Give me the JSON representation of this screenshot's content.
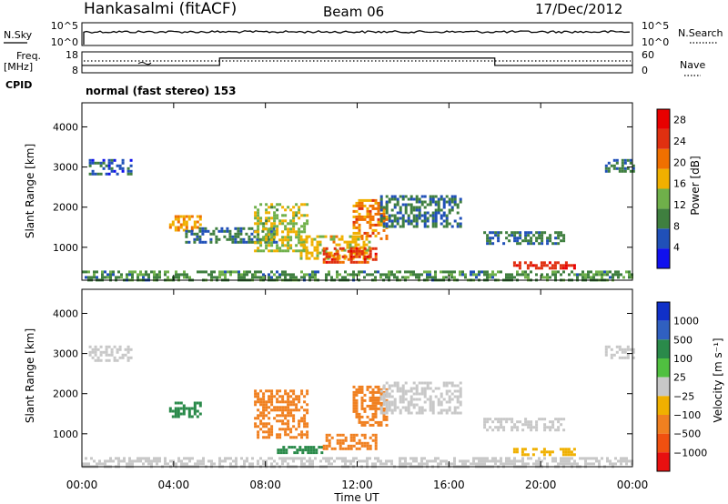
{
  "header": {
    "station": "Hankasalmi (fitACF)",
    "beam": "Beam 06",
    "date": "17/Dec/2012"
  },
  "panels": {
    "nsky": {
      "left_label": "N.Sky",
      "right_label": "N.Search",
      "left_ticks": [
        "10^5",
        "10^0"
      ],
      "right_ticks": [
        "10^5",
        "10^0"
      ]
    },
    "freq": {
      "left_label_line1": "Freq.",
      "left_label_line2": "[MHz]",
      "right_label": "Nave",
      "left_ticks": [
        "18",
        "8"
      ],
      "right_ticks": [
        "60",
        "0"
      ],
      "steps": [
        {
          "from": "00:00",
          "to": "06:00",
          "level": 0.35
        },
        {
          "from": "06:00",
          "to": "18:00",
          "level": 0.7
        },
        {
          "from": "18:00",
          "to": "24:00",
          "level": 0.35
        }
      ]
    },
    "cpid": {
      "label": "CPID",
      "text": "normal (fast stereo) 153"
    }
  },
  "chart_data": [
    {
      "type": "heatmap",
      "name": "power",
      "ylabel": "Slant Range [km]",
      "xlabel": "",
      "x_ticks": [
        "00:00",
        "04:00",
        "08:00",
        "12:00",
        "16:00",
        "20:00",
        "00:00"
      ],
      "xlim_hours": [
        0,
        24
      ],
      "y_ticks": [
        1000,
        2000,
        3000,
        4000
      ],
      "ylim": [
        180,
        4600
      ],
      "colorbar": {
        "label": "Power [dB]",
        "ticks": [
          4,
          8,
          12,
          16,
          20,
          24,
          28
        ],
        "range": [
          0,
          30
        ],
        "colors": [
          "#1010ee",
          "#2050b8",
          "#3f7f3f",
          "#6fb04a",
          "#f0b000",
          "#f07000",
          "#e03010",
          "#e80000"
        ]
      },
      "echo_regions": [
        {
          "t": [
            0.3,
            2.2
          ],
          "r": [
            2800,
            3200
          ],
          "value": 6
        },
        {
          "t": [
            0.0,
            24.0
          ],
          "r": [
            200,
            420
          ],
          "value": 10
        },
        {
          "t": [
            3.8,
            5.2
          ],
          "r": [
            1450,
            1800
          ],
          "value": 18
        },
        {
          "t": [
            4.5,
            8.5
          ],
          "r": [
            1100,
            1500
          ],
          "value": 8
        },
        {
          "t": [
            7.5,
            9.8
          ],
          "r": [
            900,
            2100
          ],
          "value": 14
        },
        {
          "t": [
            9.5,
            12.5
          ],
          "r": [
            700,
            1300
          ],
          "value": 16
        },
        {
          "t": [
            10.5,
            12.8
          ],
          "r": [
            650,
            1000
          ],
          "value": 24
        },
        {
          "t": [
            11.8,
            13.3
          ],
          "r": [
            1200,
            2200
          ],
          "value": 20
        },
        {
          "t": [
            13.0,
            16.5
          ],
          "r": [
            1500,
            2300
          ],
          "value": 8
        },
        {
          "t": [
            17.5,
            21.0
          ],
          "r": [
            1100,
            1400
          ],
          "value": 8
        },
        {
          "t": [
            18.8,
            21.5
          ],
          "r": [
            450,
            650
          ],
          "value": 26
        },
        {
          "t": [
            22.8,
            24.0
          ],
          "r": [
            2900,
            3200
          ],
          "value": 8
        }
      ]
    },
    {
      "type": "heatmap",
      "name": "velocity",
      "ylabel": "Slant Range [km]",
      "xlabel": "Time UT",
      "x_ticks": [
        "00:00",
        "04:00",
        "08:00",
        "12:00",
        "16:00",
        "20:00",
        "00:00"
      ],
      "xlim_hours": [
        0,
        24
      ],
      "y_ticks": [
        1000,
        2000,
        3000,
        4000
      ],
      "ylim": [
        180,
        4600
      ],
      "colorbar": {
        "label": "Velocity [m s⁻¹]",
        "ticks": [
          "1000",
          "500",
          "100",
          "25",
          "−25",
          "−100",
          "−500",
          "−1000"
        ],
        "colors": [
          "#1030c8",
          "#3060c0",
          "#2a8a4a",
          "#50c040",
          "#c8c8c8",
          "#f0b000",
          "#f08020",
          "#f05010",
          "#e81010"
        ]
      },
      "echo_regions": [
        {
          "t": [
            0.3,
            2.2
          ],
          "r": [
            2800,
            3200
          ],
          "value": 0
        },
        {
          "t": [
            0.0,
            24.0
          ],
          "r": [
            200,
            420
          ],
          "value": 0
        },
        {
          "t": [
            3.8,
            5.2
          ],
          "r": [
            1450,
            1800
          ],
          "value": 100
        },
        {
          "t": [
            7.5,
            9.8
          ],
          "r": [
            900,
            2100
          ],
          "value": -300
        },
        {
          "t": [
            8.5,
            10.5
          ],
          "r": [
            500,
            700
          ],
          "value": 100
        },
        {
          "t": [
            11.8,
            13.3
          ],
          "r": [
            1200,
            2200
          ],
          "value": -300
        },
        {
          "t": [
            10.5,
            12.8
          ],
          "r": [
            650,
            1000
          ],
          "value": -200
        },
        {
          "t": [
            13.0,
            16.5
          ],
          "r": [
            1500,
            2300
          ],
          "value": 0
        },
        {
          "t": [
            17.5,
            21.0
          ],
          "r": [
            1100,
            1400
          ],
          "value": 0
        },
        {
          "t": [
            18.8,
            21.5
          ],
          "r": [
            450,
            650
          ],
          "value": -50
        },
        {
          "t": [
            22.8,
            24.0
          ],
          "r": [
            2900,
            3200
          ],
          "value": 0
        }
      ]
    }
  ]
}
